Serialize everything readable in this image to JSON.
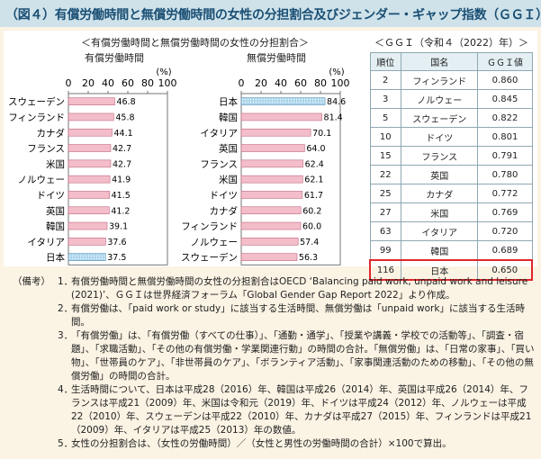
{
  "title": "（図４）有償労働時間と無償労働時間の女性の分担割合及びジェンダー・ギャップ指数（ＧＧＩ）",
  "chart_heading": "＜有償労働時間と無償労働時間の女性の分担割合＞",
  "table_heading": "＜ＧＧＩ（令和４（2022）年）＞",
  "chart_data": [
    {
      "type": "bar",
      "title": "有償労働時間",
      "unit": "(%)",
      "xlim": [
        0,
        100
      ],
      "ticks": [
        "0",
        "20",
        "40",
        "60",
        "80",
        "100"
      ],
      "categories": [
        "スウェーデン",
        "フィンランド",
        "カナダ",
        "フランス",
        "米国",
        "ノルウェー",
        "ドイツ",
        "英国",
        "韓国",
        "イタリア",
        "日本"
      ],
      "values": [
        46.8,
        45.8,
        44.1,
        42.7,
        42.7,
        41.9,
        41.5,
        41.2,
        39.1,
        37.6,
        37.5
      ],
      "labels": [
        "46.8",
        "45.8",
        "44.1",
        "42.7",
        "42.7",
        "41.9",
        "41.5",
        "41.2",
        "39.1",
        "37.6",
        "37.5"
      ],
      "highlight": "日本"
    },
    {
      "type": "bar",
      "title": "無償労働時間",
      "unit": "(%)",
      "xlim": [
        0,
        100
      ],
      "ticks": [
        "0",
        "20",
        "40",
        "60",
        "80",
        "100"
      ],
      "categories": [
        "日本",
        "韓国",
        "イタリア",
        "英国",
        "フランス",
        "米国",
        "ドイツ",
        "カナダ",
        "フィンランド",
        "ノルウェー",
        "スウェーデン"
      ],
      "values": [
        84.6,
        81.4,
        70.1,
        64.0,
        62.4,
        62.1,
        61.7,
        60.2,
        60.0,
        57.4,
        56.3
      ],
      "labels": [
        "84.6",
        "81.4",
        "70.1",
        "64.0",
        "62.4",
        "62.1",
        "61.7",
        "60.2",
        "60.0",
        "57.4",
        "56.3"
      ],
      "highlight": "日本"
    }
  ],
  "colors": {
    "bar": "#f3bdc9",
    "bar_stroke": "#c06a80",
    "highlight": "#a9d4ec",
    "highlight_stroke": "#5a8fb4"
  },
  "ggi_table": {
    "headers": [
      "順位",
      "国名",
      "ＧＧＩ値"
    ],
    "rows": [
      [
        "2",
        "フィンランド",
        "0.860"
      ],
      [
        "3",
        "ノルウェー",
        "0.845"
      ],
      [
        "5",
        "スウェーデン",
        "0.822"
      ],
      [
        "10",
        "ドイツ",
        "0.801"
      ],
      [
        "15",
        "フランス",
        "0.791"
      ],
      [
        "22",
        "英国",
        "0.780"
      ],
      [
        "25",
        "カナダ",
        "0.772"
      ],
      [
        "27",
        "米国",
        "0.769"
      ],
      [
        "63",
        "イタリア",
        "0.720"
      ],
      [
        "99",
        "韓国",
        "0.689"
      ],
      [
        "116",
        "日本",
        "0.650"
      ]
    ],
    "highlight_row": "日本"
  },
  "notes": {
    "lead": "（備考）",
    "items": [
      {
        "num": "1．",
        "text": "有償労働時間と無償労働時間の女性の分担割合はOECD ‘Balancing paid work, unpaid work and leisure (2021)’、ＧＧＩは世界経済フォーラム「Global Gender Gap Report 2022」より作成。"
      },
      {
        "num": "2．",
        "text": "有償労働は、「paid work or study」に該当する生活時間、無償労働は「unpaid work」に該当する生活時間。"
      },
      {
        "num": "3．",
        "text": "「有償労働」は、「有償労働（すべての仕事）」、「通勤・通学」、「授業や講義・学校での活動等」、「調査・宿題」、「求職活動」、「その他の有償労働・学業関連行動」の時間の合計。「無償労働」は、「日常の家事」、「買い物」、「世帯員のケア」、「非世帯員のケア」、「ボランティア活動」、「家事関連活動のための移動」、「その他の無償労働」の時間の合計。"
      },
      {
        "num": "4．",
        "text": "生活時間について、日本は平成28（2016）年、韓国は平成26（2014）年、英国は平成26（2014）年、フランスは平成21（2009）年、米国は令和元（2019）年、ドイツは平成24（2012）年、ノルウェーは平成22（2010）年、スウェーデンは平成22（2010）年、カナダは平成27（2015）年、フィンランドは平成21（2009）年、イタリアは平成25（2013）年の数値。"
      },
      {
        "num": "5．",
        "text": "女性の分担割合は、（女性の労働時間）／（女性と男性の労働時間の合計）×100で算出。"
      }
    ]
  }
}
